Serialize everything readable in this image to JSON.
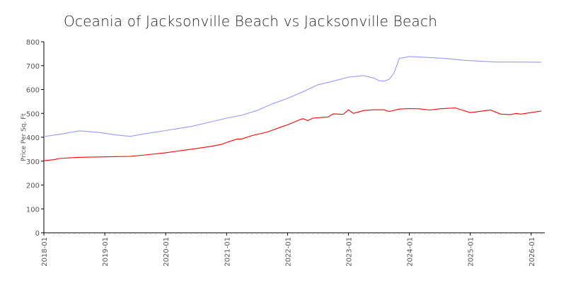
{
  "chart_data": {
    "type": "line",
    "title": "Oceania of  Jacksonville Beach vs Jacksonville Beach",
    "xlabel": "",
    "ylabel": "Price Per Sq. Ft",
    "ylim": [
      0,
      800
    ],
    "yticks": [
      "0",
      "100",
      "200",
      "300",
      "400",
      "500",
      "600",
      "700",
      "800"
    ],
    "xticks": [
      "2018-01",
      "2019-01",
      "2020-01",
      "2021-01",
      "2022-01",
      "2023-01",
      "2024-01",
      "2025-01",
      "2026-01"
    ],
    "grid": false,
    "series": [
      {
        "name": "Oceania of Jacksonville Beach",
        "color": "#9999ff",
        "points": [
          [
            "2018-01",
            403
          ],
          [
            "2018-04",
            412
          ],
          [
            "2018-08",
            427
          ],
          [
            "2018-12",
            420
          ],
          [
            "2019-03",
            410
          ],
          [
            "2019-06",
            404
          ],
          [
            "2019-09",
            415
          ],
          [
            "2020-01",
            428
          ],
          [
            "2020-06",
            445
          ],
          [
            "2020-10",
            465
          ],
          [
            "2021-01",
            480
          ],
          [
            "2021-04",
            492
          ],
          [
            "2021-07",
            512
          ],
          [
            "2021-10",
            540
          ],
          [
            "2022-01",
            563
          ],
          [
            "2022-04",
            590
          ],
          [
            "2022-07",
            620
          ],
          [
            "2022-10",
            635
          ],
          [
            "2023-01",
            652
          ],
          [
            "2023-04",
            658
          ],
          [
            "2023-06",
            648
          ],
          [
            "2023-07",
            637
          ],
          [
            "2023-08",
            635
          ],
          [
            "2023-09",
            642
          ],
          [
            "2023-10",
            670
          ],
          [
            "2023-11",
            730
          ],
          [
            "2024-01",
            738
          ],
          [
            "2024-04",
            735
          ],
          [
            "2024-08",
            730
          ],
          [
            "2024-12",
            722
          ],
          [
            "2025-06",
            715
          ],
          [
            "2025-10",
            715
          ],
          [
            "2026-03",
            714
          ]
        ]
      },
      {
        "name": "Jacksonville Beach",
        "color": "#ff0000",
        "points": [
          [
            "2018-01",
            302
          ],
          [
            "2018-03",
            306
          ],
          [
            "2018-04",
            311
          ],
          [
            "2018-08",
            316
          ],
          [
            "2019-01",
            318
          ],
          [
            "2019-06",
            320
          ],
          [
            "2019-09",
            326
          ],
          [
            "2020-01",
            335
          ],
          [
            "2020-06",
            350
          ],
          [
            "2020-10",
            362
          ],
          [
            "2020-12",
            370
          ],
          [
            "2021-01",
            378
          ],
          [
            "2021-03",
            392
          ],
          [
            "2021-04",
            393
          ],
          [
            "2021-06",
            407
          ],
          [
            "2021-09",
            422
          ],
          [
            "2021-12",
            445
          ],
          [
            "2022-01",
            452
          ],
          [
            "2022-03",
            470
          ],
          [
            "2022-04",
            478
          ],
          [
            "2022-05",
            470
          ],
          [
            "2022-06",
            480
          ],
          [
            "2022-09",
            485
          ],
          [
            "2022-10",
            498
          ],
          [
            "2022-12",
            496
          ],
          [
            "2023-01",
            515
          ],
          [
            "2023-02",
            500
          ],
          [
            "2023-04",
            512
          ],
          [
            "2023-06",
            515
          ],
          [
            "2023-08",
            515
          ],
          [
            "2023-09",
            508
          ],
          [
            "2023-11",
            518
          ],
          [
            "2024-01",
            520
          ],
          [
            "2024-03",
            519
          ],
          [
            "2024-05",
            514
          ],
          [
            "2024-07",
            519
          ],
          [
            "2024-10",
            523
          ],
          [
            "2024-12",
            510
          ],
          [
            "2025-01",
            503
          ],
          [
            "2025-05",
            514
          ],
          [
            "2025-07",
            497
          ],
          [
            "2025-09",
            495
          ],
          [
            "2025-10",
            500
          ],
          [
            "2025-11",
            497
          ],
          [
            "2026-03",
            510
          ]
        ]
      }
    ]
  }
}
